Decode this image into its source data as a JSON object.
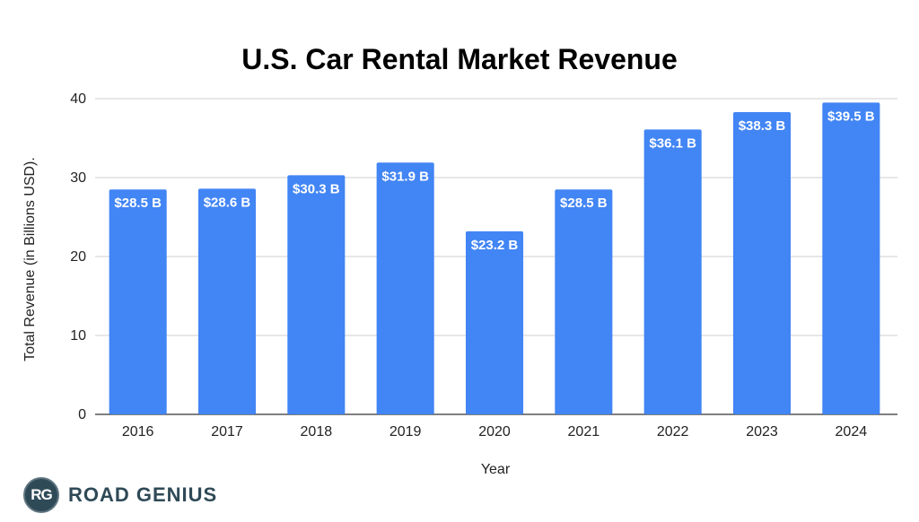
{
  "chart_data": {
    "type": "bar",
    "title": "U.S. Car Rental Market Revenue",
    "xlabel": "Year",
    "ylabel": "Total Revenue (in Billions USD).",
    "categories": [
      "2016",
      "2017",
      "2018",
      "2019",
      "2020",
      "2021",
      "2022",
      "2023",
      "2024"
    ],
    "values": [
      28.5,
      28.6,
      30.3,
      31.9,
      23.2,
      28.5,
      36.1,
      38.3,
      39.5
    ],
    "data_labels": [
      "$28.5 B",
      "$28.6 B",
      "$30.3 B",
      "$31.9 B",
      "$23.2 B",
      "$28.5 B",
      "$36.1 B",
      "$38.3 B",
      "$39.5 B"
    ],
    "ylim": [
      0,
      40
    ],
    "yticks": [
      "0",
      "10",
      "20",
      "30",
      "40"
    ],
    "ytick_values": [
      0,
      10,
      20,
      30,
      40
    ],
    "grid": true,
    "bar_color": "#4285f4"
  },
  "logo": {
    "badge": "RG",
    "name": "ROAD GENIUS"
  }
}
